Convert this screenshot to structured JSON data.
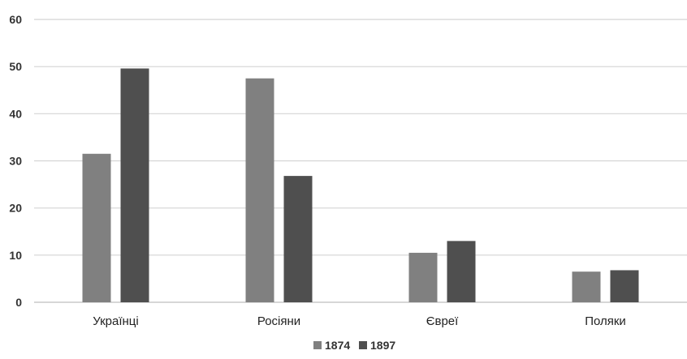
{
  "chart_data": {
    "type": "bar",
    "categories": [
      "Українці",
      "Росіяни",
      "Євреї",
      "Поляки"
    ],
    "series": [
      {
        "name": "1874",
        "values": [
          31.5,
          47.5,
          10.5,
          6.5
        ],
        "color": "#808080"
      },
      {
        "name": "1897",
        "values": [
          49.6,
          26.8,
          13.0,
          6.8
        ],
        "color": "#4f4f4f"
      }
    ],
    "ylim": [
      0,
      60
    ],
    "yticks": [
      "0",
      "10",
      "20",
      "30",
      "40",
      "50",
      "60"
    ],
    "grid": true,
    "legend_position": "bottom"
  }
}
